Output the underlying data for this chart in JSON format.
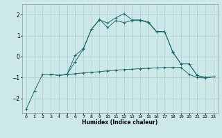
{
  "title": "",
  "xlabel": "Humidex (Indice chaleur)",
  "background_color": "#cce8e8",
  "grid_color": "#aacccc",
  "line_color": "#1a6b6b",
  "xlim": [
    -0.5,
    23.5
  ],
  "ylim": [
    -2.7,
    2.5
  ],
  "yticks": [
    -2,
    -1,
    0,
    1,
    2
  ],
  "xticks": [
    0,
    1,
    2,
    3,
    4,
    5,
    6,
    7,
    8,
    9,
    10,
    11,
    12,
    13,
    14,
    15,
    16,
    17,
    18,
    19,
    20,
    21,
    22,
    23
  ],
  "series1_x": [
    0,
    1,
    2,
    3,
    4,
    5,
    6,
    7,
    8,
    9,
    10,
    11,
    12,
    13,
    14,
    15,
    16,
    17,
    18,
    19,
    20,
    21,
    22,
    23
  ],
  "series1_y": [
    -2.5,
    -1.65,
    -0.85,
    -0.85,
    -0.9,
    -0.85,
    -0.82,
    -0.78,
    -0.75,
    -0.72,
    -0.68,
    -0.65,
    -0.62,
    -0.6,
    -0.58,
    -0.56,
    -0.54,
    -0.52,
    -0.52,
    -0.52,
    -0.85,
    -1.0,
    -1.02,
    -0.97
  ],
  "series2_x": [
    3,
    4,
    5,
    6,
    7,
    8,
    9,
    10,
    11,
    12,
    13,
    14,
    15,
    16,
    17,
    18,
    19,
    20,
    21,
    22,
    23
  ],
  "series2_y": [
    -0.85,
    -0.9,
    -0.85,
    -0.25,
    0.35,
    1.3,
    1.75,
    1.6,
    1.85,
    2.05,
    1.75,
    1.75,
    1.65,
    1.2,
    1.2,
    0.2,
    -0.35,
    -0.35,
    -0.9,
    -1.0,
    -0.97
  ],
  "series3_x": [
    3,
    4,
    5,
    6,
    7,
    8,
    9,
    10,
    11,
    12,
    13,
    14,
    15,
    16,
    17,
    18,
    19,
    20,
    21,
    22,
    23
  ],
  "series3_y": [
    -0.85,
    -0.9,
    -0.85,
    0.05,
    0.38,
    1.3,
    1.78,
    1.38,
    1.72,
    1.62,
    1.72,
    1.72,
    1.62,
    1.18,
    1.18,
    0.22,
    -0.35,
    -0.35,
    -0.9,
    -1.0,
    -0.97
  ]
}
